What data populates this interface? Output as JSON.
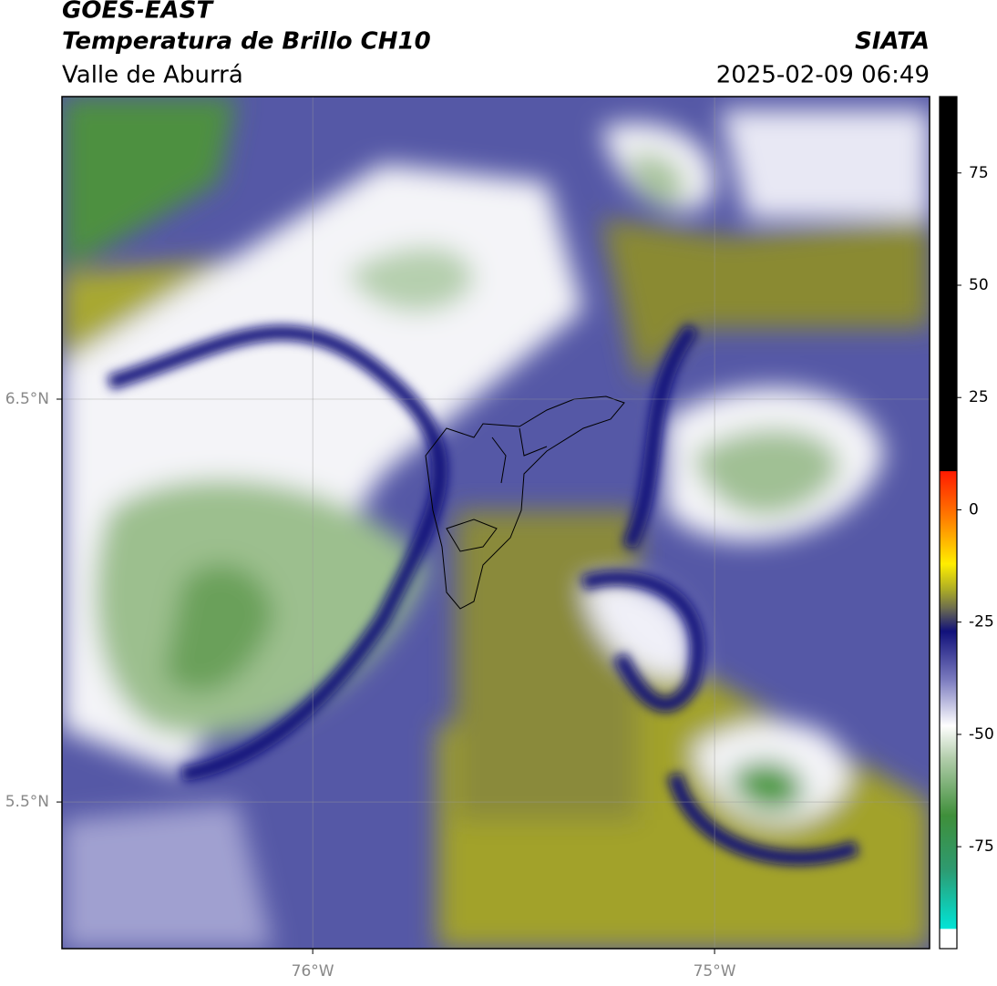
{
  "header": {
    "title": "GOES-EAST",
    "subtitle": "Temperatura de Brillo CH10",
    "region": "Valle de Aburrá",
    "source": "SIATA",
    "datetime": "2025-02-09 06:49"
  },
  "map": {
    "xlim": [
      -76.624,
      -74.465
    ],
    "ylim": [
      5.136,
      7.251
    ],
    "xticks": [
      {
        "value": -76,
        "label": "76°W"
      },
      {
        "value": -75,
        "label": "75°W"
      }
    ],
    "yticks": [
      {
        "value": 6.5,
        "label": "6.5°N"
      },
      {
        "value": 5.5,
        "label": "5.5°N"
      }
    ],
    "grid": true
  },
  "colorbar": {
    "lim": [
      -97.7,
      92
    ],
    "ticks": [
      75,
      50,
      25,
      0,
      -25,
      -50,
      -75
    ],
    "stops": [
      {
        "value": 92,
        "color": "#000000"
      },
      {
        "value": 8.6,
        "color": "#000000"
      },
      {
        "value": 8.6,
        "color": "#ff1a00"
      },
      {
        "value": -2,
        "color": "#ff8000"
      },
      {
        "value": -12,
        "color": "#ffee00"
      },
      {
        "value": -18,
        "color": "#a8a828"
      },
      {
        "value": -22,
        "color": "#6a6a50"
      },
      {
        "value": -27,
        "color": "#10107a"
      },
      {
        "value": -38,
        "color": "#7d7dc0"
      },
      {
        "value": -48,
        "color": "#ffffff"
      },
      {
        "value": -55,
        "color": "#b5cfae"
      },
      {
        "value": -68,
        "color": "#3f8f3a"
      },
      {
        "value": -80,
        "color": "#2e9a70"
      },
      {
        "value": -93.3,
        "color": "#00e5d8"
      },
      {
        "value": -93.3,
        "color": "#ffffff"
      },
      {
        "value": -97.7,
        "color": "#ffffff"
      }
    ]
  }
}
